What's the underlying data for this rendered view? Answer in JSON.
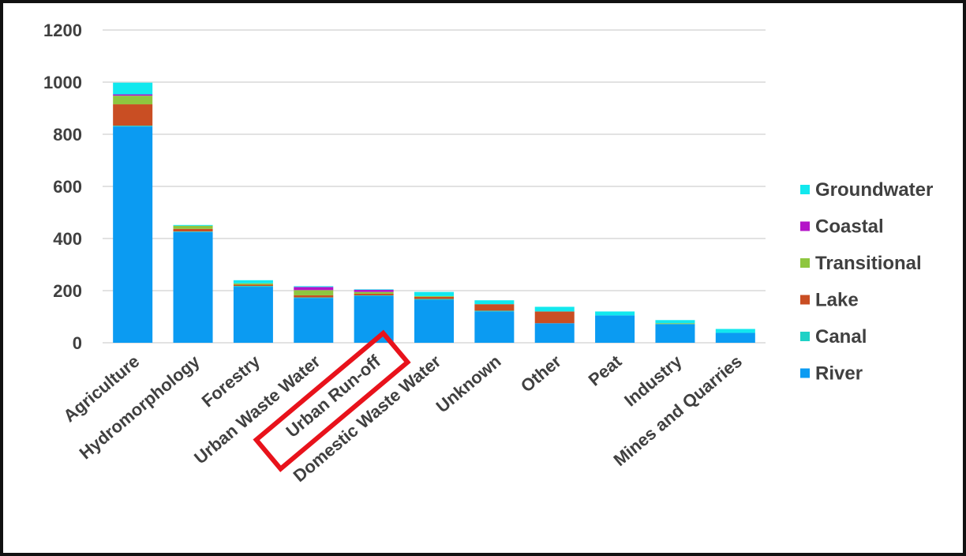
{
  "chart_data": {
    "type": "bar",
    "stacked": true,
    "title": "",
    "xlabel": "",
    "ylabel": "",
    "ylim": [
      0,
      1200
    ],
    "yticks": [
      0,
      200,
      400,
      600,
      800,
      1000,
      1200
    ],
    "grid": true,
    "legend_position": "right",
    "categories": [
      "Agriculture",
      "Hydromorphology",
      "Forestry",
      "Urban Waste Water",
      "Urban Run-off",
      "Domestic Waste Water",
      "Unknown",
      "Other",
      "Peat",
      "Industry",
      "Mines and Quarries"
    ],
    "series": [
      {
        "name": "River",
        "color": "#0b9bf2",
        "values": [
          830,
          425,
          215,
          172,
          180,
          165,
          120,
          75,
          105,
          72,
          38
        ]
      },
      {
        "name": "Canal",
        "color": "#1fd1c6",
        "values": [
          3,
          2,
          3,
          2,
          2,
          3,
          3,
          0,
          0,
          0,
          0
        ]
      },
      {
        "name": "Lake",
        "color": "#c94e23",
        "values": [
          82,
          10,
          5,
          8,
          6,
          8,
          25,
          45,
          0,
          0,
          0
        ]
      },
      {
        "name": "Transitional",
        "color": "#8ec63f",
        "values": [
          33,
          12,
          5,
          20,
          7,
          3,
          0,
          0,
          0,
          3,
          0
        ]
      },
      {
        "name": "Coastal",
        "color": "#b414c8",
        "values": [
          5,
          0,
          0,
          12,
          8,
          0,
          0,
          0,
          0,
          0,
          0
        ]
      },
      {
        "name": "Groundwater",
        "color": "#12e8ee",
        "values": [
          45,
          3,
          12,
          3,
          2,
          16,
          15,
          18,
          15,
          12,
          15
        ]
      }
    ],
    "legend_order": [
      "Groundwater",
      "Coastal",
      "Transitional",
      "Lake",
      "Canal",
      "River"
    ],
    "highlight": {
      "category": "Urban Run-off",
      "color": "#e8121b"
    }
  }
}
